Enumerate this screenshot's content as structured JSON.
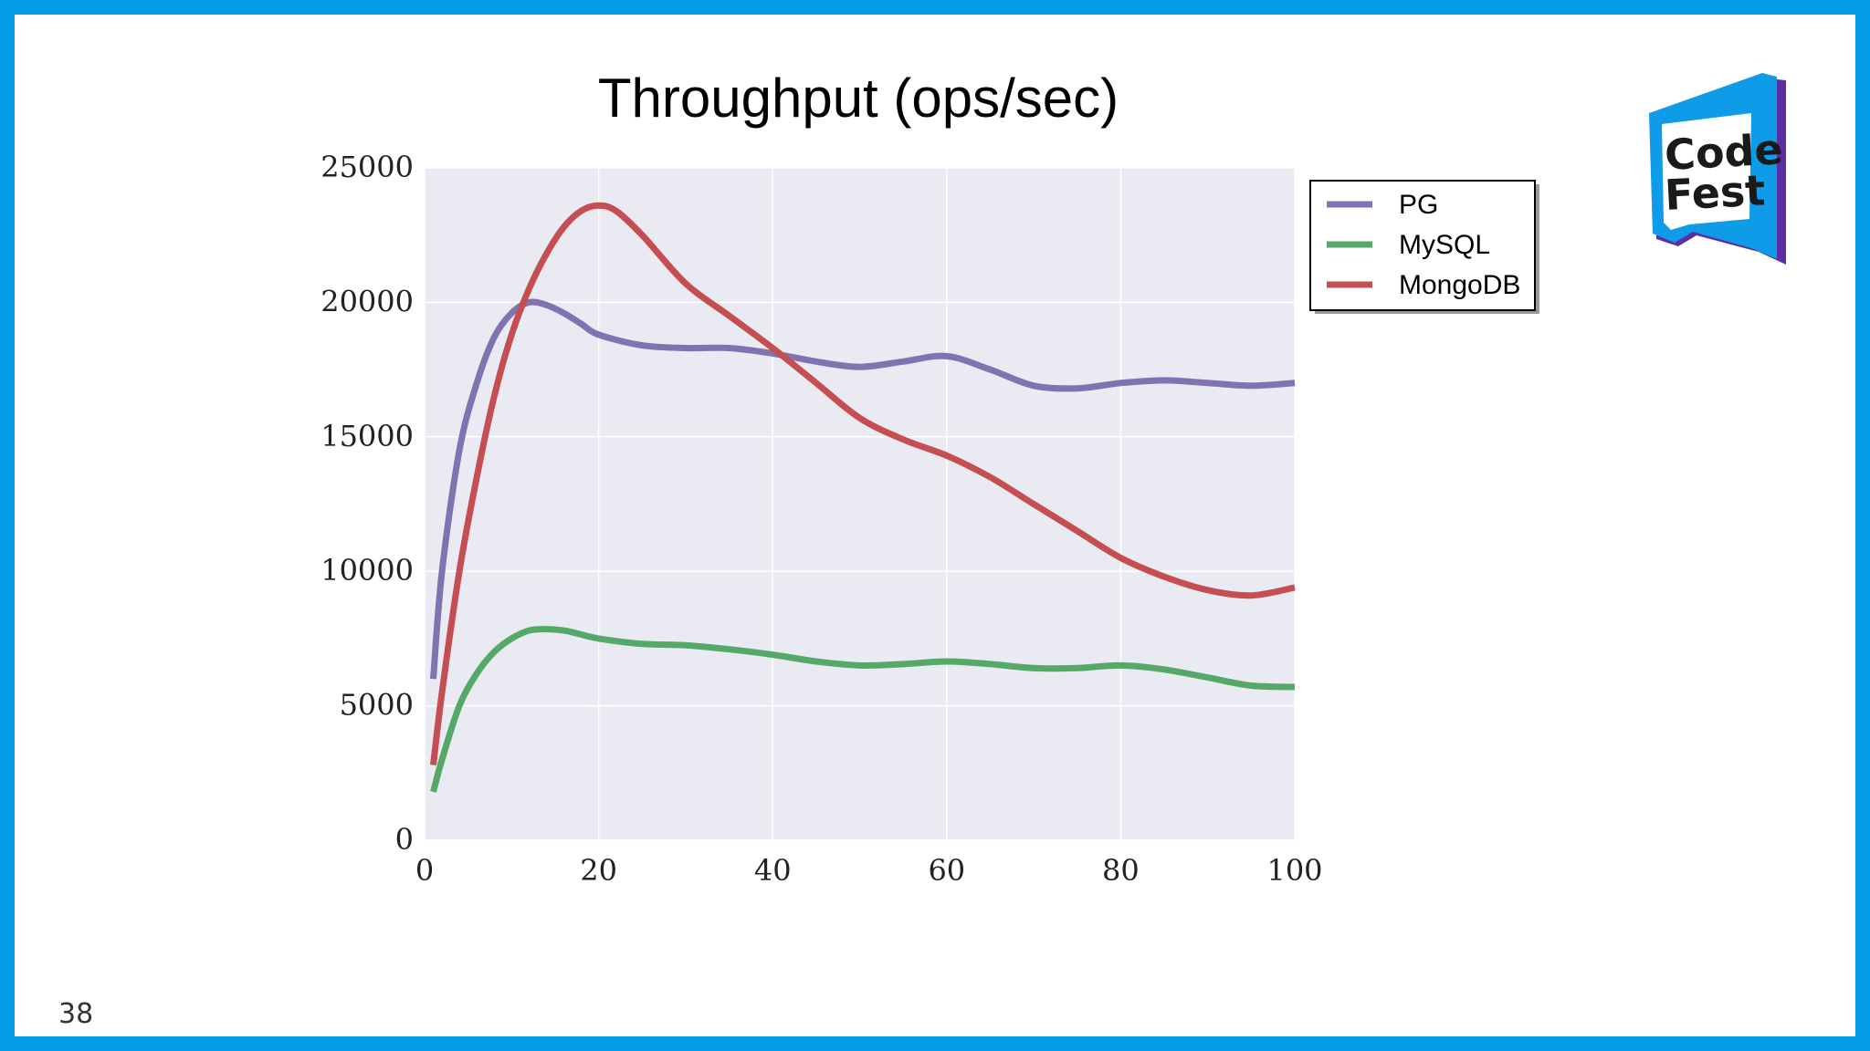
{
  "page_number": "38",
  "logo": {
    "line1": "Code",
    "line2": "Fest",
    "colors": {
      "primary": "#0e9be8",
      "secondary": "#5b2ea3"
    }
  },
  "theme": {
    "border": "#039be5",
    "plot_bg": "#eaeaf2",
    "grid": "#ffffff"
  },
  "chart_data": {
    "type": "line",
    "title": "Throughput (ops/sec)",
    "xlabel": "",
    "ylabel": "",
    "xlim": [
      0,
      100
    ],
    "ylim": [
      0,
      25000
    ],
    "xticks": [
      "0",
      "20",
      "40",
      "60",
      "80",
      "100"
    ],
    "yticks": [
      "0",
      "5000",
      "10000",
      "15000",
      "20000",
      "25000"
    ],
    "grid": true,
    "legend_position": "top-right outside",
    "series": [
      {
        "name": "PG",
        "color": "#8172b2",
        "x": [
          1,
          2,
          4,
          6,
          8,
          10,
          12,
          14,
          16,
          18,
          20,
          25,
          30,
          35,
          40,
          45,
          50,
          55,
          60,
          65,
          70,
          75,
          80,
          85,
          90,
          95,
          100
        ],
        "y": [
          6000,
          10000,
          14500,
          17000,
          18700,
          19600,
          20000,
          19900,
          19600,
          19200,
          18800,
          18400,
          18300,
          18300,
          18100,
          17800,
          17600,
          17800,
          18000,
          17500,
          16900,
          16800,
          17000,
          17100,
          17000,
          16900,
          17000
        ]
      },
      {
        "name": "MySQL",
        "color": "#55a868",
        "x": [
          1,
          2,
          4,
          6,
          8,
          10,
          12,
          14,
          16,
          18,
          20,
          25,
          30,
          35,
          40,
          45,
          50,
          55,
          60,
          65,
          70,
          75,
          80,
          85,
          90,
          95,
          100
        ],
        "y": [
          1800,
          3000,
          5000,
          6200,
          7000,
          7500,
          7800,
          7850,
          7800,
          7650,
          7500,
          7300,
          7250,
          7100,
          6900,
          6650,
          6500,
          6550,
          6650,
          6550,
          6400,
          6400,
          6500,
          6350,
          6050,
          5750,
          5700
        ]
      },
      {
        "name": "MongoDB",
        "color": "#c44e52",
        "x": [
          1,
          2,
          4,
          6,
          8,
          10,
          12,
          14,
          16,
          18,
          20,
          22,
          25,
          30,
          35,
          40,
          45,
          50,
          55,
          60,
          65,
          70,
          75,
          80,
          85,
          90,
          95,
          100
        ],
        "y": [
          2800,
          5500,
          10000,
          13500,
          16500,
          18800,
          20500,
          21800,
          22800,
          23400,
          23600,
          23400,
          22500,
          20700,
          19500,
          18300,
          17000,
          15700,
          14900,
          14300,
          13500,
          12500,
          11500,
          10500,
          9800,
          9300,
          9100,
          9400
        ]
      }
    ]
  }
}
